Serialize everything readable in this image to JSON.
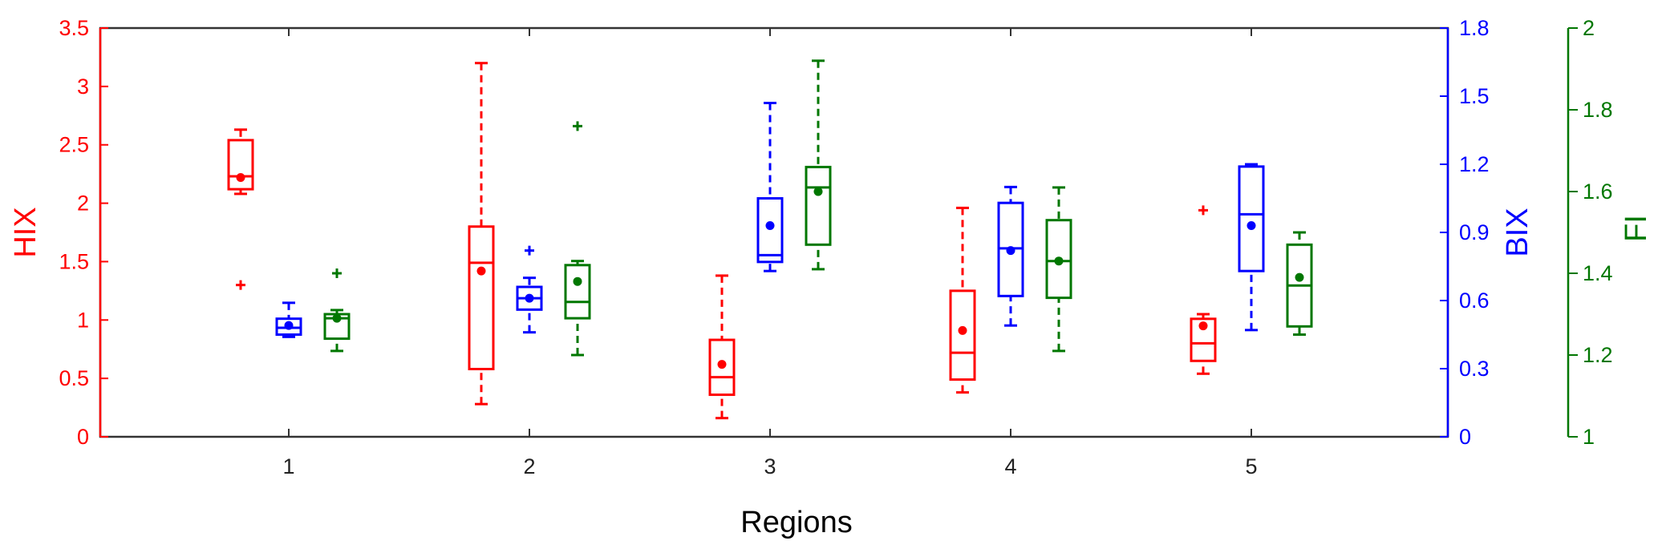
{
  "chart_data": {
    "type": "box",
    "xlabel": "Regions",
    "categories": [
      "1",
      "2",
      "3",
      "4",
      "5"
    ],
    "grid": false,
    "axes": {
      "left": {
        "label": "HIX",
        "color": "#ff0000",
        "ylim": [
          0,
          3.5
        ],
        "ticks": [
          "0",
          "0.5",
          "1",
          "1.5",
          "2",
          "2.5",
          "3",
          "3.5"
        ]
      },
      "right1": {
        "label": "BIX",
        "color": "#0000ff",
        "ylim": [
          0,
          1.8
        ],
        "ticks": [
          "0",
          "0.3",
          "0.6",
          "0.9",
          "1.2",
          "1.5",
          "1.8"
        ]
      },
      "right2": {
        "label": "FI",
        "color": "#007700",
        "ylim": [
          1,
          2
        ],
        "ticks": [
          "1",
          "1.2",
          "1.4",
          "1.6",
          "1.8",
          "2"
        ]
      }
    },
    "series": [
      {
        "name": "HIX",
        "axis": "left",
        "color": "#ff0000",
        "boxes": [
          {
            "category": "1",
            "whisker_low": 2.08,
            "q1": 2.12,
            "median": 2.23,
            "q3": 2.54,
            "whisker_high": 2.63,
            "mean": 2.22,
            "outliers": [
              1.3
            ]
          },
          {
            "category": "2",
            "whisker_low": 0.28,
            "q1": 0.58,
            "median": 1.49,
            "q3": 1.8,
            "whisker_high": 3.2,
            "mean": 1.42,
            "outliers": []
          },
          {
            "category": "3",
            "whisker_low": 0.16,
            "q1": 0.36,
            "median": 0.51,
            "q3": 0.83,
            "whisker_high": 1.38,
            "mean": 0.62,
            "outliers": []
          },
          {
            "category": "4",
            "whisker_low": 0.38,
            "q1": 0.49,
            "median": 0.72,
            "q3": 1.25,
            "whisker_high": 1.96,
            "mean": 0.91,
            "outliers": []
          },
          {
            "category": "5",
            "whisker_low": 0.54,
            "q1": 0.65,
            "median": 0.8,
            "q3": 1.01,
            "whisker_high": 1.05,
            "mean": 0.95,
            "outliers": [
              1.94
            ]
          }
        ]
      },
      {
        "name": "BIX",
        "axis": "right1",
        "color": "#0000ff",
        "boxes": [
          {
            "category": "1",
            "whisker_low": 0.44,
            "q1": 0.45,
            "median": 0.48,
            "q3": 0.52,
            "whisker_high": 0.59,
            "mean": 0.49,
            "outliers": []
          },
          {
            "category": "2",
            "whisker_low": 0.46,
            "q1": 0.56,
            "median": 0.61,
            "q3": 0.66,
            "whisker_high": 0.7,
            "mean": 0.61,
            "outliers": [
              0.82
            ]
          },
          {
            "category": "3",
            "whisker_low": 0.73,
            "q1": 0.77,
            "median": 0.8,
            "q3": 1.05,
            "whisker_high": 1.47,
            "mean": 0.93,
            "outliers": []
          },
          {
            "category": "4",
            "whisker_low": 0.49,
            "q1": 0.62,
            "median": 0.83,
            "q3": 1.03,
            "whisker_high": 1.1,
            "mean": 0.82,
            "outliers": []
          },
          {
            "category": "5",
            "whisker_low": 0.47,
            "q1": 0.73,
            "median": 0.98,
            "q3": 1.19,
            "whisker_high": 1.2,
            "mean": 0.93,
            "outliers": []
          }
        ]
      },
      {
        "name": "FI",
        "axis": "right2",
        "color": "#007700",
        "boxes": [
          {
            "category": "1",
            "whisker_low": 1.21,
            "q1": 1.24,
            "median": 1.29,
            "q3": 1.3,
            "whisker_high": 1.31,
            "mean": 1.29,
            "outliers": [
              1.4
            ]
          },
          {
            "category": "2",
            "whisker_low": 1.2,
            "q1": 1.29,
            "median": 1.33,
            "q3": 1.42,
            "whisker_high": 1.43,
            "mean": 1.38,
            "outliers": [
              1.76
            ]
          },
          {
            "category": "3",
            "whisker_low": 1.41,
            "q1": 1.47,
            "median": 1.61,
            "q3": 1.66,
            "whisker_high": 1.92,
            "mean": 1.6,
            "outliers": []
          },
          {
            "category": "4",
            "whisker_low": 1.21,
            "q1": 1.34,
            "median": 1.43,
            "q3": 1.53,
            "whisker_high": 1.61,
            "mean": 1.43,
            "outliers": []
          },
          {
            "category": "5",
            "whisker_low": 1.25,
            "q1": 1.27,
            "median": 1.37,
            "q3": 1.47,
            "whisker_high": 1.5,
            "mean": 1.39,
            "outliers": []
          }
        ]
      }
    ]
  }
}
